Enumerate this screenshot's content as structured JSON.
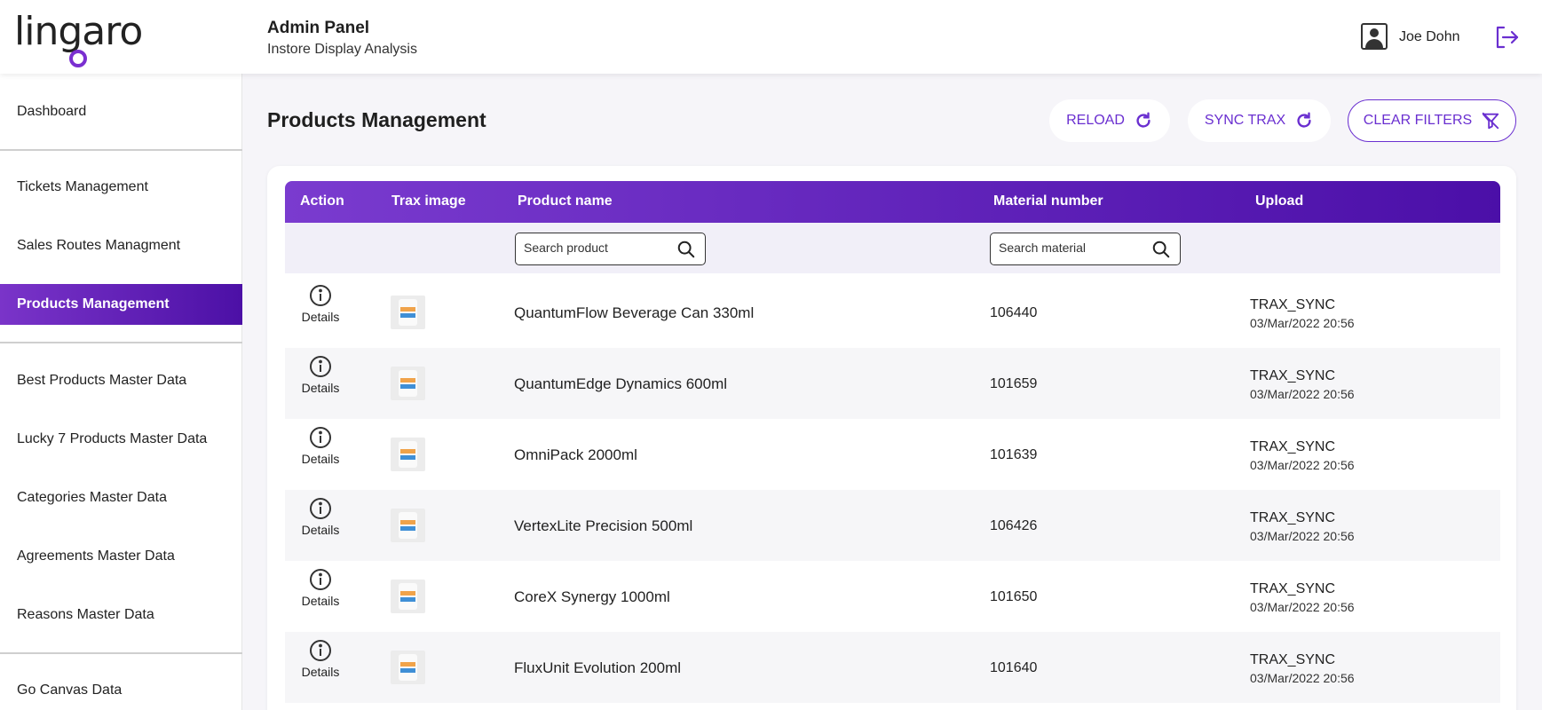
{
  "brand": {
    "logo_text": "lingaro",
    "accent": "#6a2fd0"
  },
  "header": {
    "title": "Admin Panel",
    "subtitle": "Instore Display Analysis",
    "user_name": "Joe Dohn"
  },
  "sidebar": {
    "items": [
      {
        "label": "Dashboard"
      },
      {
        "label": "Tickets Management"
      },
      {
        "label": "Sales Routes Managment"
      },
      {
        "label": "Products  Management",
        "active": true
      },
      {
        "label": "Best Products Master Data"
      },
      {
        "label": "Lucky 7 Products Master Data"
      },
      {
        "label": "Categories Master Data"
      },
      {
        "label": "Agreements Master Data"
      },
      {
        "label": "Reasons Master Data"
      },
      {
        "label": "Go Canvas Data"
      }
    ]
  },
  "page": {
    "title": "Products Management"
  },
  "toolbar": {
    "reload_label": "RELOAD",
    "sync_label": "SYNC TRAX",
    "clear_label": "CLEAR FILTERS"
  },
  "table": {
    "columns": [
      "Action",
      "Trax image",
      "Product name",
      "Material number",
      "Upload"
    ],
    "filters": {
      "product_placeholder": "Search product",
      "material_placeholder": "Search material"
    },
    "details_label": "Details",
    "rows": [
      {
        "product": "QuantumFlow Beverage Can 330ml",
        "material": "106440",
        "upload_source": "TRAX_SYNC",
        "upload_date": "03/Mar/2022 20:56"
      },
      {
        "product": "QuantumEdge Dynamics 600ml",
        "material": "101659",
        "upload_source": "TRAX_SYNC",
        "upload_date": "03/Mar/2022 20:56"
      },
      {
        "product": "OmniPack 2000ml",
        "material": "101639",
        "upload_source": "TRAX_SYNC",
        "upload_date": "03/Mar/2022 20:56"
      },
      {
        "product": "VertexLite Precision 500ml",
        "material": "106426",
        "upload_source": "TRAX_SYNC",
        "upload_date": "03/Mar/2022 20:56"
      },
      {
        "product": "CoreX Synergy 1000ml",
        "material": "101650",
        "upload_source": "TRAX_SYNC",
        "upload_date": "03/Mar/2022 20:56"
      },
      {
        "product": "FluxUnit Evolution 200ml",
        "material": "101640",
        "upload_source": "TRAX_SYNC",
        "upload_date": "03/Mar/2022 20:56"
      }
    ]
  }
}
